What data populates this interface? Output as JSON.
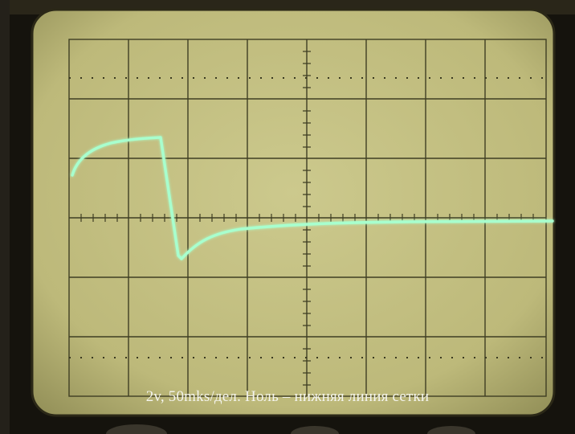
{
  "caption": "2v, 50mks/дел. Ноль – нижняя линия сетки",
  "colors": {
    "screen": "#c8c487",
    "grid": "#3f3e23",
    "trace": "#a8ffce",
    "bezel": "#17150f"
  },
  "scope": {
    "grid_divisions_x": 8,
    "grid_divisions_y": 6,
    "volts_per_division": 2,
    "microseconds_per_division": 50
  }
}
